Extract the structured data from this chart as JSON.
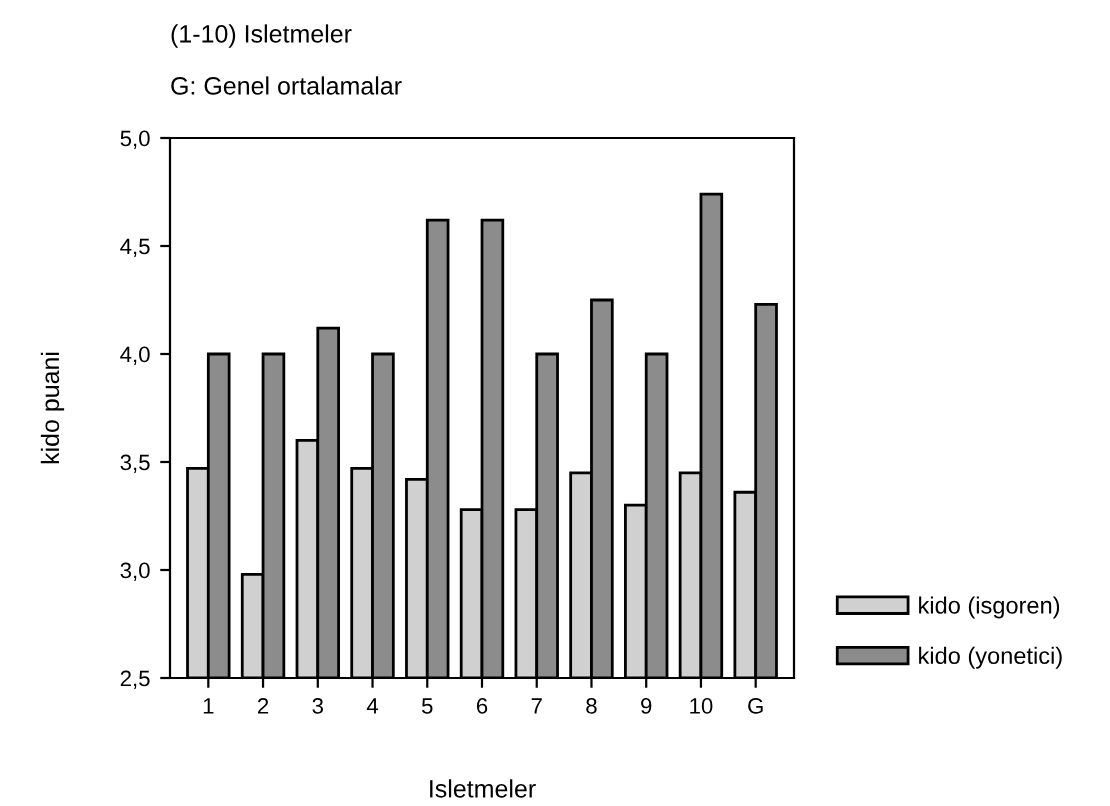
{
  "chart_data": {
    "type": "bar",
    "xlabel": "Isletmeler",
    "ylabel": "kido puani",
    "annotations": [
      "(1-10) Isletmeler",
      "G: Genel ortalamalar"
    ],
    "categories": [
      "1",
      "2",
      "3",
      "4",
      "5",
      "6",
      "7",
      "8",
      "9",
      "10",
      "G"
    ],
    "series": [
      {
        "name": "kido (isgoren)",
        "color": "#d0d0d0",
        "values": [
          3.47,
          2.98,
          3.6,
          3.47,
          3.42,
          3.28,
          3.28,
          3.45,
          3.3,
          3.45,
          3.36
        ]
      },
      {
        "name": "kido (yonetici)",
        "color": "#8c8c8c",
        "values": [
          4.0,
          4.0,
          4.12,
          4.0,
          4.62,
          4.62,
          4.0,
          4.25,
          4.0,
          4.74,
          4.23
        ]
      }
    ],
    "ylim": [
      2.5,
      5.0
    ],
    "yticks": [
      {
        "value": 2.5,
        "label": "2,5"
      },
      {
        "value": 3.0,
        "label": "3,0"
      },
      {
        "value": 3.5,
        "label": "3,5"
      },
      {
        "value": 4.0,
        "label": "4,0"
      },
      {
        "value": 4.5,
        "label": "4,5"
      },
      {
        "value": 5.0,
        "label": "5,0"
      }
    ],
    "grid": false,
    "legend": "right"
  }
}
